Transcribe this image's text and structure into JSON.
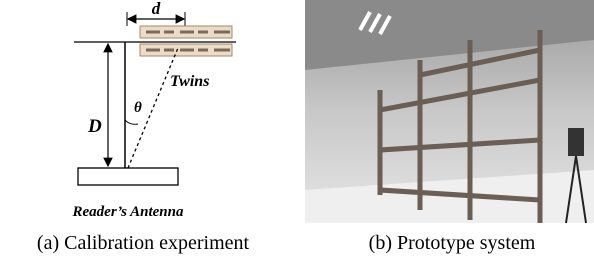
{
  "diagram": {
    "distance_label": "d",
    "tag_label": "Twins",
    "height_label": "D",
    "angle_label": "θ",
    "antenna_label": "Reader’s Antenna"
  },
  "captions": [
    "(a) Calibration experiment",
    "(b) Prototype system"
  ]
}
